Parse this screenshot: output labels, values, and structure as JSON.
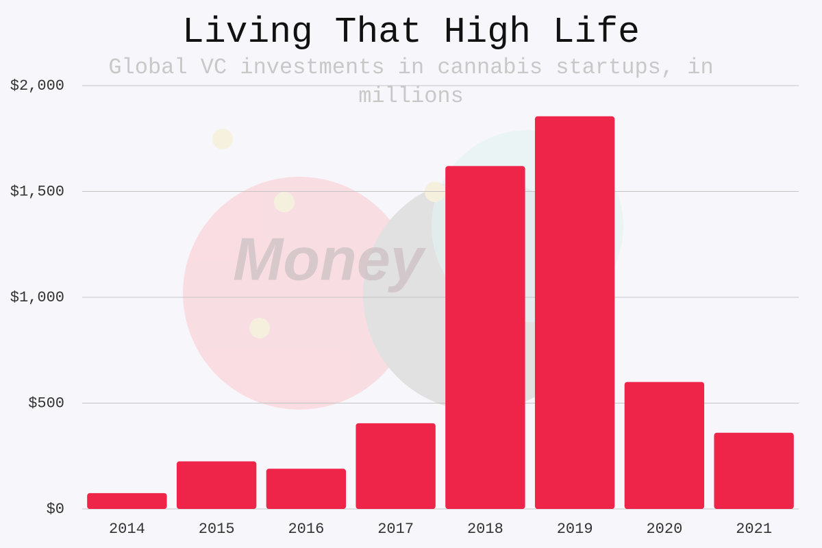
{
  "chart_data": {
    "type": "bar",
    "title": "Living That High Life",
    "subtitle": "Global VC investments in cannabis startups, in millions",
    "watermark": "Money",
    "categories": [
      "2014",
      "2015",
      "2016",
      "2017",
      "2018",
      "2019",
      "2020",
      "2021"
    ],
    "values": [
      75,
      225,
      190,
      405,
      1620,
      1855,
      600,
      360
    ],
    "color": "#ee2449",
    "ylim": [
      0,
      2000
    ],
    "yticks": [
      {
        "value": 0,
        "label": "$0"
      },
      {
        "value": 500,
        "label": "$500"
      },
      {
        "value": 1000,
        "label": "$1,000"
      },
      {
        "value": 1500,
        "label": "$1,500"
      },
      {
        "value": 2000,
        "label": "$2,000"
      }
    ],
    "grid": true
  }
}
